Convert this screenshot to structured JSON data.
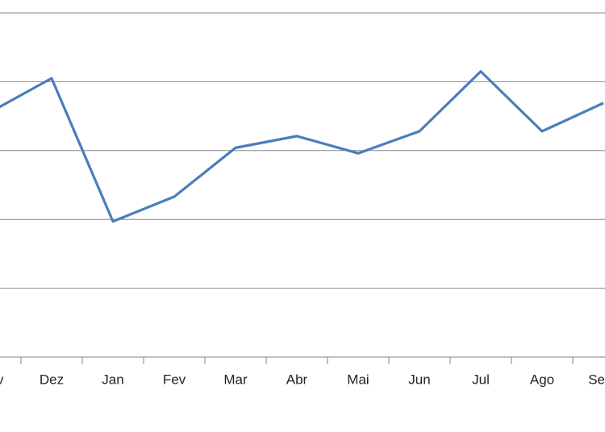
{
  "chart_data": {
    "type": "line",
    "categories": [
      "v",
      "Dez",
      "Jan",
      "Fev",
      "Mar",
      "Abr",
      "Mai",
      "Jun",
      "Jul",
      "Ago",
      "Se"
    ],
    "series": [
      {
        "color": "#4a7ebb",
        "values": [
          3.56,
          4.05,
          1.97,
          2.33,
          3.04,
          3.21,
          2.96,
          3.28,
          4.15,
          3.28,
          3.69
        ]
      }
    ],
    "ylim": [
      0,
      5
    ],
    "yticks": [
      0,
      1,
      2,
      3,
      4,
      5
    ],
    "grid": true
  }
}
